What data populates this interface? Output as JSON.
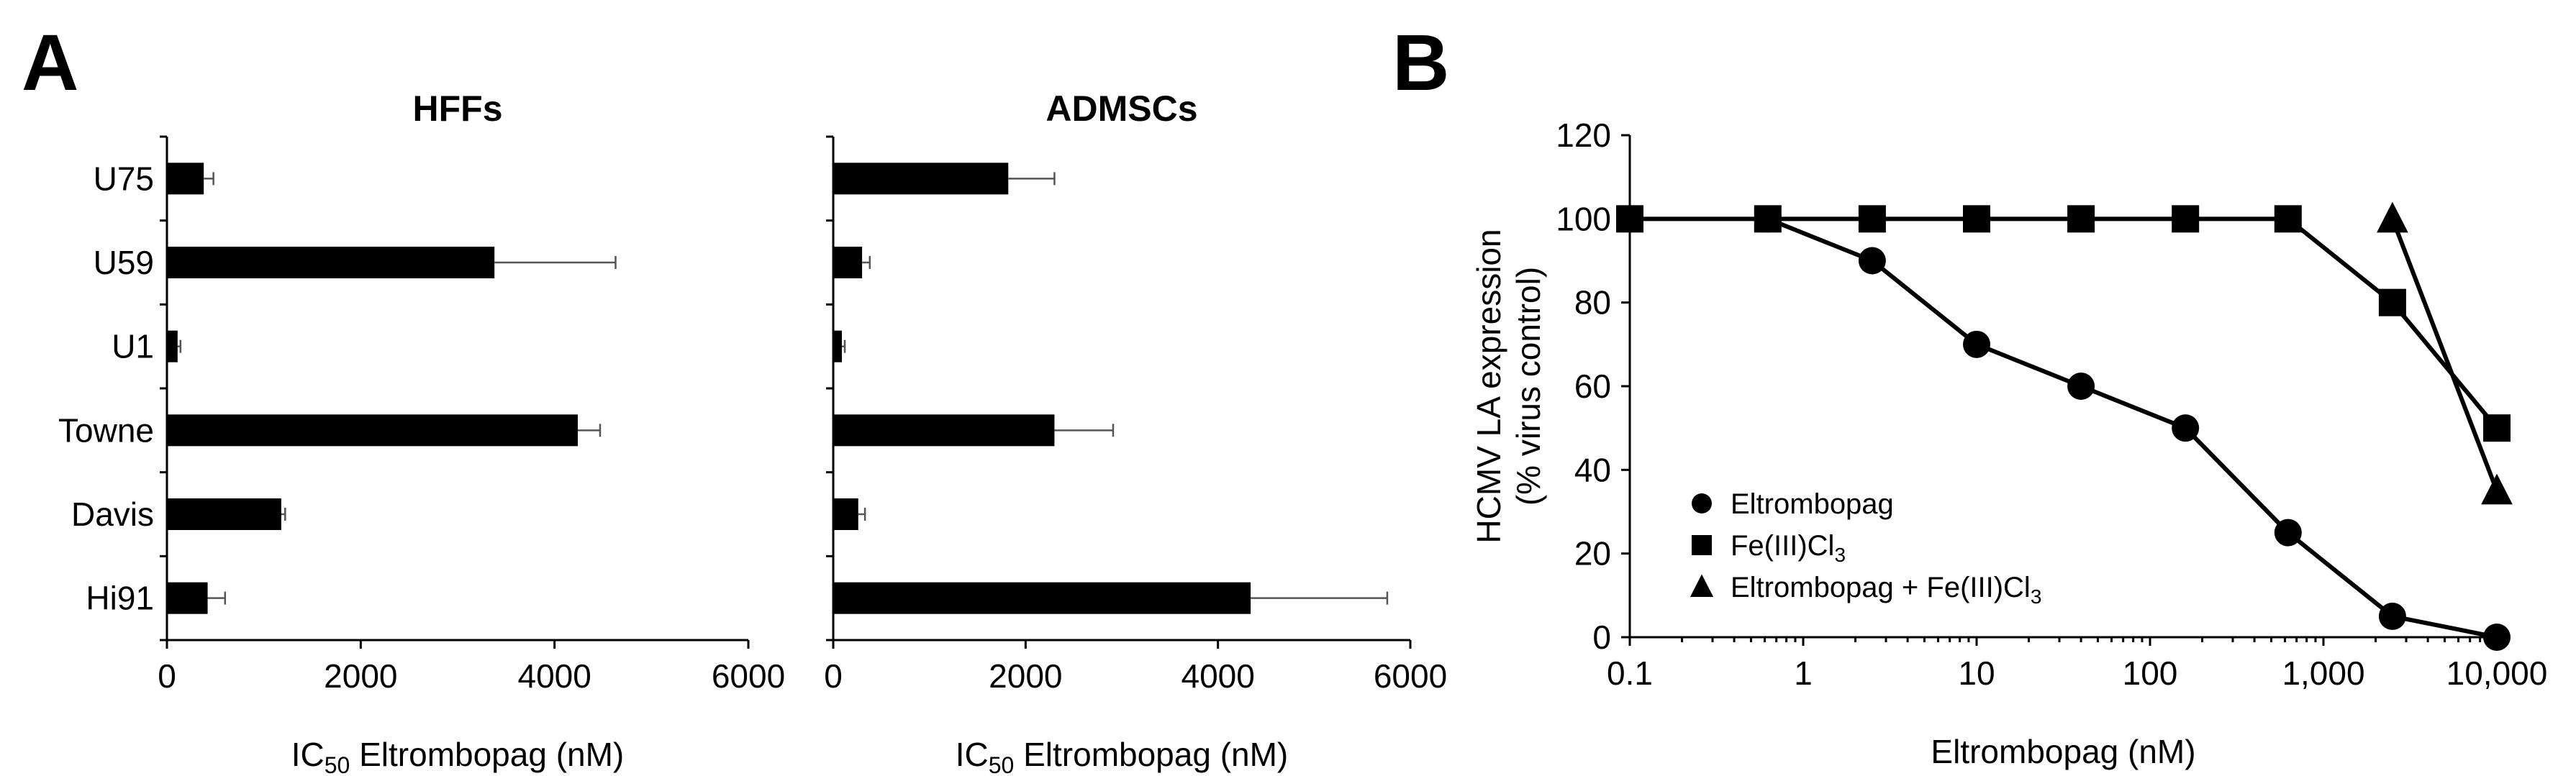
{
  "panel_labels": [
    "A",
    "B"
  ],
  "chart_data": [
    {
      "type": "bar",
      "orientation": "horizontal",
      "title": "HFFs",
      "categories": [
        "U75",
        "U59",
        "U1",
        "Towne",
        "Davis",
        "Hi91"
      ],
      "values": [
        380,
        3380,
        110,
        4240,
        1180,
        420
      ],
      "errors": [
        100,
        1250,
        30,
        230,
        40,
        180
      ],
      "xlabel": "IC",
      "xlabel_sub": "50",
      "xlabel_rest": " Eltrombopag (nM)",
      "xlim": [
        0,
        6000
      ],
      "xticks": [
        0,
        2000,
        4000,
        6000
      ],
      "tick_labels": [
        "0",
        "2000",
        "4000",
        "6000"
      ]
    },
    {
      "type": "bar",
      "orientation": "horizontal",
      "title": "ADMSCs",
      "categories": [
        "U75",
        "U59",
        "U1",
        "Towne",
        "Davis",
        "Hi91"
      ],
      "values": [
        1820,
        300,
        90,
        2300,
        260,
        4340
      ],
      "errors": [
        480,
        80,
        30,
        610,
        70,
        1420
      ],
      "xlabel": "IC",
      "xlabel_sub": "50",
      "xlabel_rest": " Eltrombopag (nM)",
      "xlim": [
        0,
        6000
      ],
      "xticks": [
        0,
        2000,
        4000,
        6000
      ],
      "tick_labels": [
        "0",
        "2000",
        "4000",
        "6000"
      ]
    },
    {
      "type": "line",
      "xscale": "log",
      "xlabel": "Eltrombopag (nM)",
      "ylabel_line1": "HCMV LA expression",
      "ylabel_line2": "(% virus control)",
      "xlim": [
        0.1,
        10000
      ],
      "ylim": [
        0,
        120
      ],
      "xticks": [
        0.1,
        1,
        10,
        100,
        1000,
        10000
      ],
      "xtick_labels": [
        "0.1",
        "1",
        "10",
        "100",
        "1,000",
        "10,000"
      ],
      "yticks": [
        0,
        20,
        40,
        60,
        80,
        100,
        120
      ],
      "ytick_labels": [
        "0",
        "20",
        "40",
        "60",
        "80",
        "100",
        "120"
      ],
      "legend_position": "bottom-left",
      "series": [
        {
          "name": "Eltrombopag",
          "marker": "circle",
          "x": [
            0.625,
            2.5,
            10,
            40,
            160,
            625,
            2500,
            10000
          ],
          "y": [
            100,
            90,
            70,
            60,
            50,
            25,
            5,
            0
          ]
        },
        {
          "name": "Fe(III)Cl",
          "name_sub": "3",
          "marker": "square",
          "x": [
            0.1,
            0.625,
            2.5,
            10,
            40,
            160,
            625,
            2500,
            10000
          ],
          "y": [
            100,
            100,
            100,
            100,
            100,
            100,
            100,
            80,
            50
          ]
        },
        {
          "name": "Eltrombopag + Fe(III)Cl",
          "name_sub": "3",
          "marker": "triangle",
          "x": [
            2500,
            10000
          ],
          "y": [
            100,
            35
          ]
        }
      ]
    }
  ]
}
